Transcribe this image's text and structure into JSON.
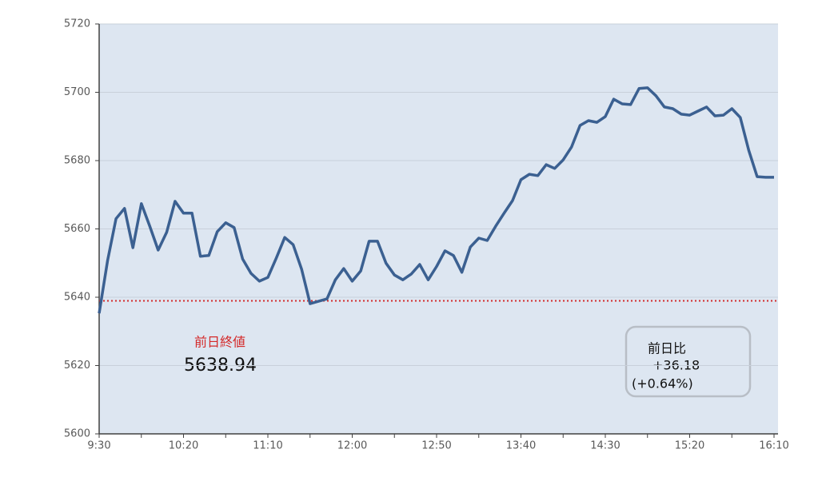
{
  "chart_data": {
    "type": "line",
    "categories": [
      "9:30",
      null,
      null,
      null,
      null,
      null,
      null,
      null,
      null,
      null,
      "10:20",
      null,
      null,
      null,
      null,
      null,
      null,
      null,
      null,
      null,
      "11:10",
      null,
      null,
      null,
      null,
      null,
      null,
      null,
      null,
      null,
      "12:00",
      null,
      null,
      null,
      null,
      null,
      null,
      null,
      null,
      null,
      "12:50",
      null,
      null,
      null,
      null,
      null,
      null,
      null,
      null,
      null,
      "13:40",
      null,
      null,
      null,
      null,
      null,
      null,
      null,
      null,
      null,
      "14:30",
      null,
      null,
      null,
      null,
      null,
      null,
      null,
      null,
      null,
      "15:20",
      null,
      null,
      null,
      null,
      null,
      null,
      null,
      null,
      null,
      "16:10"
    ],
    "values": [
      5635.3,
      5650.8,
      5663,
      5666,
      5654.5,
      5667.4,
      5660.8,
      5653.8,
      5659,
      5668.1,
      5664.6,
      5664.6,
      5652,
      5652.2,
      5659.2,
      5661.8,
      5660.4,
      5651.2,
      5647,
      5644.7,
      5645.8,
      5651.5,
      5657.5,
      5655.4,
      5648.2,
      5638.1,
      5638.8,
      5639.5,
      5645.1,
      5648.4,
      5644.7,
      5647.7,
      5656.4,
      5656.4,
      5650,
      5646.5,
      5645.1,
      5646.8,
      5649.6,
      5645.1,
      5649,
      5653.6,
      5652.2,
      5647.3,
      5654.7,
      5657.3,
      5656.6,
      5660.8,
      5664.6,
      5668.3,
      5674.4,
      5676,
      5675.6,
      5678.8,
      5677.7,
      5680.2,
      5684,
      5690.3,
      5691.7,
      5691.2,
      5692.9,
      5698,
      5696.6,
      5696.4,
      5701.1,
      5701.3,
      5699,
      5695.7,
      5695.2,
      5693.6,
      5693.3,
      5694.5,
      5695.7,
      5693.1,
      5693.3,
      5695.2,
      5692.6,
      5683,
      5675.3,
      5675.1,
      5675.12
    ],
    "color": "#3b6091",
    "ylim": [
      5600,
      5720
    ],
    "yticks": [
      5600,
      5620,
      5640,
      5660,
      5680,
      5700,
      5720
    ],
    "grid": true,
    "reference_line": {
      "value": 5638.94,
      "label": "前日終値",
      "color": "#d42a2a"
    },
    "change_box": {
      "title": "前日比",
      "change": "+36.18",
      "percent": "(+0.64%)"
    }
  }
}
